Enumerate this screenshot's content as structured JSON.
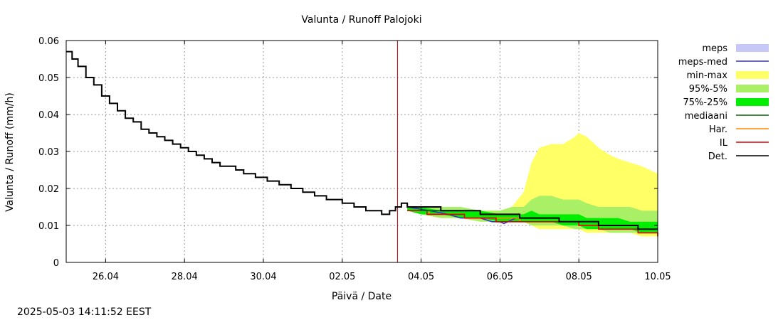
{
  "chart_data": {
    "type": "line",
    "title": "Valunta / Runoff  Palojoki",
    "xlabel": "Päivä / Date",
    "ylabel": "Valunta / Runoff (mm/h)",
    "footer": "2025-05-03 14:11:52 EEST",
    "x_range_days": [
      0,
      15
    ],
    "ylim": [
      0,
      0.06
    ],
    "x_ticks": [
      {
        "label": "26.04",
        "day": 1
      },
      {
        "label": "28.04",
        "day": 3
      },
      {
        "label": "30.04",
        "day": 5
      },
      {
        "label": "02.05",
        "day": 7
      },
      {
        "label": "04.05",
        "day": 9
      },
      {
        "label": "06.05",
        "day": 11
      },
      {
        "label": "08.05",
        "day": 13
      },
      {
        "label": "10.05",
        "day": 15
      }
    ],
    "y_ticks": [
      {
        "label": "0",
        "value": 0
      },
      {
        "label": "0.01",
        "value": 0.01
      },
      {
        "label": "0.02",
        "value": 0.02
      },
      {
        "label": "0.03",
        "value": 0.03
      },
      {
        "label": "0.04",
        "value": 0.04
      },
      {
        "label": "0.05",
        "value": 0.05
      },
      {
        "label": "0.06",
        "value": 0.06
      }
    ],
    "grid": true,
    "now_marker_day": 8.4,
    "colors": {
      "meps": "#c8c8f8",
      "meps_med": "#3333cc",
      "min_max": "#ffff66",
      "p95_5": "#aaf066",
      "p75_25": "#00ee00",
      "mediaani": "#006600",
      "har": "#ff8800",
      "il": "#dd0000",
      "det": "#000000",
      "now": "#aa0000",
      "grid": "#999999"
    },
    "legend": {
      "position": "right",
      "entries": [
        {
          "key": "meps",
          "label": "meps",
          "style": "fill"
        },
        {
          "key": "meps_med",
          "label": "meps-med",
          "style": "line"
        },
        {
          "key": "min_max",
          "label": "min-max",
          "style": "fill"
        },
        {
          "key": "p95_5",
          "label": "95%-5%",
          "style": "fill"
        },
        {
          "key": "p75_25",
          "label": "75%-25%",
          "style": "fill"
        },
        {
          "key": "mediaani",
          "label": "mediaani",
          "style": "line"
        },
        {
          "key": "har",
          "label": "Har.",
          "style": "line"
        },
        {
          "key": "il",
          "label": "IL",
          "style": "line"
        },
        {
          "key": "det",
          "label": "Det.",
          "style": "line"
        }
      ]
    },
    "series": [
      {
        "name": "Det.",
        "key": "det",
        "kind": "step",
        "points": [
          [
            0,
            0.057
          ],
          [
            0.15,
            0.055
          ],
          [
            0.3,
            0.053
          ],
          [
            0.5,
            0.05
          ],
          [
            0.7,
            0.048
          ],
          [
            0.9,
            0.045
          ],
          [
            1.1,
            0.043
          ],
          [
            1.3,
            0.041
          ],
          [
            1.5,
            0.039
          ],
          [
            1.7,
            0.038
          ],
          [
            1.9,
            0.036
          ],
          [
            2.1,
            0.035
          ],
          [
            2.3,
            0.034
          ],
          [
            2.5,
            0.033
          ],
          [
            2.7,
            0.032
          ],
          [
            2.9,
            0.031
          ],
          [
            3.1,
            0.03
          ],
          [
            3.3,
            0.029
          ],
          [
            3.5,
            0.028
          ],
          [
            3.7,
            0.027
          ],
          [
            3.9,
            0.026
          ],
          [
            4.1,
            0.026
          ],
          [
            4.3,
            0.025
          ],
          [
            4.5,
            0.024
          ],
          [
            4.8,
            0.023
          ],
          [
            5.1,
            0.022
          ],
          [
            5.4,
            0.021
          ],
          [
            5.7,
            0.02
          ],
          [
            6,
            0.019
          ],
          [
            6.3,
            0.018
          ],
          [
            6.6,
            0.017
          ],
          [
            7,
            0.016
          ],
          [
            7.3,
            0.015
          ],
          [
            7.6,
            0.014
          ],
          [
            7.8,
            0.014
          ],
          [
            8,
            0.013
          ],
          [
            8.2,
            0.014
          ],
          [
            8.35,
            0.015
          ],
          [
            8.5,
            0.016
          ],
          [
            8.65,
            0.015
          ],
          [
            9,
            0.015
          ],
          [
            9.5,
            0.014
          ],
          [
            10,
            0.014
          ],
          [
            10.5,
            0.013
          ],
          [
            11,
            0.013
          ],
          [
            11.5,
            0.012
          ],
          [
            12,
            0.012
          ],
          [
            12.5,
            0.011
          ],
          [
            13,
            0.011
          ],
          [
            13.5,
            0.01
          ],
          [
            14,
            0.01
          ],
          [
            14.5,
            0.009
          ],
          [
            15,
            0.009
          ]
        ]
      },
      {
        "name": "mediaani",
        "key": "mediaani",
        "kind": "step",
        "points": [
          [
            8.65,
            0.015
          ],
          [
            9,
            0.014
          ],
          [
            9.5,
            0.014
          ],
          [
            10,
            0.014
          ],
          [
            10.5,
            0.013
          ],
          [
            11,
            0.013
          ],
          [
            11.5,
            0.012
          ],
          [
            12,
            0.012
          ],
          [
            12.5,
            0.011
          ],
          [
            13,
            0.011
          ],
          [
            13.5,
            0.01
          ],
          [
            14,
            0.01
          ],
          [
            14.5,
            0.009
          ],
          [
            15,
            0.009
          ]
        ]
      },
      {
        "name": "Har.",
        "key": "har",
        "kind": "step",
        "points": [
          [
            8.65,
            0.014
          ],
          [
            9.2,
            0.013
          ],
          [
            9.6,
            0.013
          ],
          [
            10.1,
            0.012
          ],
          [
            10.5,
            0.012
          ],
          [
            11,
            0.012
          ],
          [
            11.5,
            0.011
          ],
          [
            12,
            0.011
          ],
          [
            12.5,
            0.011
          ],
          [
            13,
            0.01
          ],
          [
            13.5,
            0.009
          ],
          [
            14,
            0.009
          ],
          [
            14.5,
            0.008
          ],
          [
            15,
            0.008
          ]
        ]
      },
      {
        "name": "IL",
        "key": "il",
        "kind": "step",
        "points": [
          [
            8.65,
            0.014
          ],
          [
            9.15,
            0.013
          ],
          [
            9.6,
            0.013
          ],
          [
            10.1,
            0.012
          ],
          [
            10.5,
            0.012
          ],
          [
            10.9,
            0.011
          ],
          [
            11.5,
            0.011
          ],
          [
            12,
            0.011
          ],
          [
            12.5,
            0.011
          ],
          [
            13,
            0.01
          ],
          [
            13.5,
            0.009
          ],
          [
            14,
            0.009
          ],
          [
            14.5,
            0.008
          ],
          [
            15,
            0.007
          ]
        ]
      },
      {
        "name": "meps-med",
        "key": "meps_med",
        "kind": "line",
        "points": [
          [
            8.65,
            0.015
          ],
          [
            9.2,
            0.014
          ],
          [
            9.7,
            0.013
          ],
          [
            10,
            0.012
          ],
          [
            10.5,
            0.012
          ],
          [
            10.8,
            0.011
          ],
          [
            11,
            0.011
          ],
          [
            11.1,
            0.0105
          ],
          [
            11.2,
            0.011
          ],
          [
            11.4,
            0.012
          ],
          [
            11.7,
            0.012
          ],
          [
            12,
            0.012
          ]
        ]
      }
    ],
    "bands": [
      {
        "name": "min-max",
        "key": "min_max",
        "x": [
          8.65,
          9,
          9.5,
          10,
          10.5,
          11,
          11.3,
          11.6,
          11.8,
          12,
          12.3,
          12.6,
          12.9,
          13,
          13.2,
          13.5,
          13.8,
          14,
          14.3,
          14.6,
          15
        ],
        "upper": [
          0.015,
          0.015,
          0.015,
          0.015,
          0.014,
          0.014,
          0.015,
          0.019,
          0.027,
          0.031,
          0.032,
          0.032,
          0.034,
          0.035,
          0.034,
          0.031,
          0.029,
          0.028,
          0.027,
          0.026,
          0.024
        ],
        "lower": [
          0.014,
          0.013,
          0.012,
          0.012,
          0.011,
          0.011,
          0.011,
          0.011,
          0.01,
          0.009,
          0.009,
          0.009,
          0.009,
          0.009,
          0.008,
          0.008,
          0.008,
          0.008,
          0.008,
          0.007,
          0.007
        ]
      },
      {
        "name": "95%-5%",
        "key": "p95_5",
        "x": [
          8.65,
          9,
          9.5,
          10,
          10.5,
          11,
          11.3,
          11.6,
          11.8,
          12,
          12.3,
          12.6,
          12.9,
          13,
          13.2,
          13.5,
          13.8,
          14,
          14.3,
          14.6,
          15
        ],
        "upper": [
          0.015,
          0.015,
          0.015,
          0.015,
          0.014,
          0.014,
          0.015,
          0.015,
          0.017,
          0.018,
          0.018,
          0.017,
          0.017,
          0.017,
          0.016,
          0.015,
          0.015,
          0.015,
          0.015,
          0.014,
          0.014
        ],
        "lower": [
          0.014,
          0.013,
          0.012,
          0.012,
          0.011,
          0.011,
          0.011,
          0.011,
          0.01,
          0.01,
          0.01,
          0.01,
          0.009,
          0.009,
          0.009,
          0.009,
          0.008,
          0.008,
          0.008,
          0.008,
          0.008
        ]
      },
      {
        "name": "75%-25%",
        "key": "p75_25",
        "x": [
          8.65,
          9,
          9.5,
          10,
          10.5,
          11,
          11.3,
          11.6,
          11.8,
          12,
          12.3,
          12.6,
          12.9,
          13,
          13.2,
          13.5,
          13.8,
          14,
          14.3,
          14.6,
          15
        ],
        "upper": [
          0.015,
          0.015,
          0.014,
          0.014,
          0.014,
          0.013,
          0.013,
          0.013,
          0.014,
          0.013,
          0.013,
          0.013,
          0.013,
          0.013,
          0.012,
          0.012,
          0.012,
          0.012,
          0.011,
          0.011,
          0.011
        ],
        "lower": [
          0.014,
          0.013,
          0.013,
          0.012,
          0.012,
          0.011,
          0.011,
          0.011,
          0.011,
          0.011,
          0.011,
          0.01,
          0.01,
          0.01,
          0.009,
          0.009,
          0.009,
          0.009,
          0.009,
          0.008,
          0.008
        ]
      }
    ]
  }
}
